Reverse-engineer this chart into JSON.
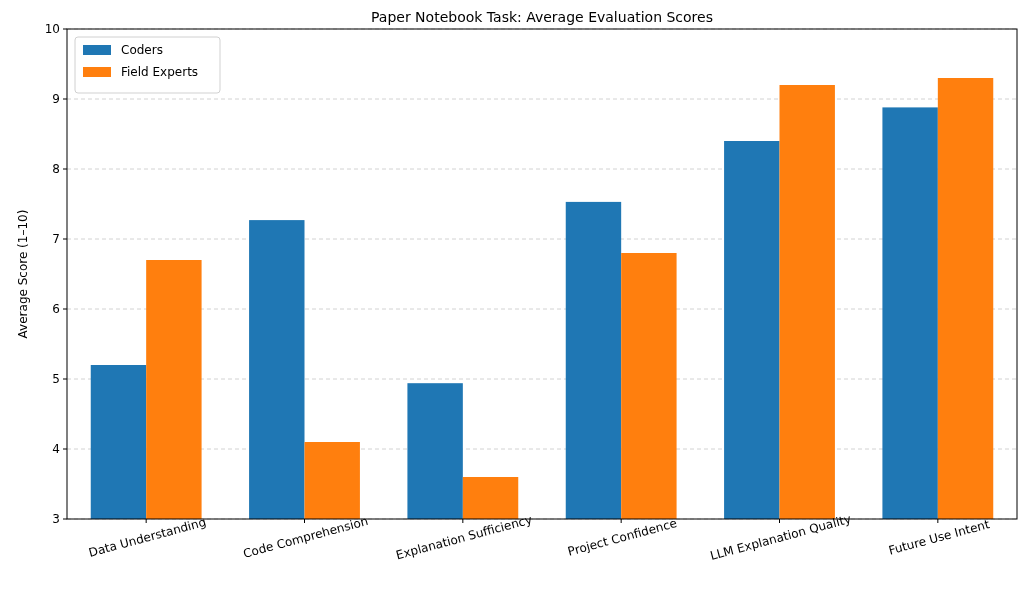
{
  "chart_data": {
    "type": "bar",
    "title": "Paper Notebook Task: Average Evaluation Scores",
    "ylabel": "Average Score (1–10)",
    "categories": [
      "Data Understanding",
      "Code Comprehension",
      "Explanation Sufficiency",
      "Project Confidence",
      "LLM Explanation Quality",
      "Future Use Intent"
    ],
    "series": [
      {
        "name": "Coders",
        "color": "#1f77b4",
        "values": [
          5.2,
          7.27,
          4.94,
          7.53,
          8.4,
          8.88
        ]
      },
      {
        "name": "Field Experts",
        "color": "#ff7f0e",
        "values": [
          6.7,
          4.1,
          3.6,
          6.8,
          9.2,
          9.3
        ]
      }
    ],
    "ylim": [
      3,
      10
    ],
    "yticks": [
      3,
      4,
      5,
      6,
      7,
      8,
      9,
      10
    ],
    "grid": "y",
    "legend": "top left"
  }
}
